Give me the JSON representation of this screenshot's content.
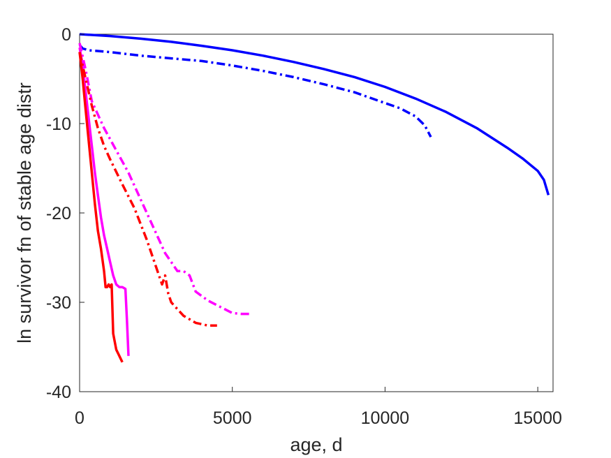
{
  "chart_data": {
    "type": "line",
    "title": "",
    "xlabel": "age, d",
    "ylabel": "ln survivor fn of stable age distr",
    "xlim": [
      0,
      15500
    ],
    "ylim": [
      -40,
      0
    ],
    "xticks": [
      0,
      5000,
      10000,
      15000
    ],
    "yticks": [
      0,
      -10,
      -20,
      -30,
      -40
    ],
    "grid": false,
    "legend": "none",
    "series": [
      {
        "color": "#0000ff",
        "dash": "solid",
        "x": [
          0,
          1000,
          2000,
          3000,
          4000,
          5000,
          6000,
          7000,
          8000,
          9000,
          10000,
          11000,
          12000,
          13000,
          14000,
          14500,
          15000,
          15200,
          15350
        ],
        "y": [
          0,
          -0.2,
          -0.5,
          -0.85,
          -1.3,
          -1.8,
          -2.4,
          -3.1,
          -3.9,
          -4.8,
          -5.9,
          -7.2,
          -8.7,
          -10.5,
          -12.7,
          -13.9,
          -15.3,
          -16.3,
          -18
        ]
      },
      {
        "color": "#0000ff",
        "dash": "dashdot",
        "x": [
          0,
          100,
          300,
          1000,
          2000,
          3000,
          4000,
          5000,
          6000,
          7000,
          8000,
          9000,
          10000,
          10500,
          11000,
          11300,
          11500
        ],
        "y": [
          -1.2,
          -1.6,
          -1.8,
          -2.0,
          -2.4,
          -2.7,
          -3.0,
          -3.5,
          -4.1,
          -4.8,
          -5.6,
          -6.5,
          -7.7,
          -8.3,
          -9.2,
          -10.2,
          -11.5
        ]
      },
      {
        "color": "#ff00ff",
        "dash": "solid",
        "x": [
          0,
          100,
          200,
          300,
          400,
          500,
          600,
          700,
          800,
          900,
          1000,
          1100,
          1200,
          1300,
          1400,
          1500,
          1550,
          1600
        ],
        "y": [
          -1.5,
          -3.5,
          -6.5,
          -9.5,
          -12.5,
          -15.5,
          -18,
          -20.5,
          -22.5,
          -24,
          -25.5,
          -27,
          -28,
          -28.3,
          -28.3,
          -28.5,
          -32,
          -36
        ]
      },
      {
        "color": "#ff0000",
        "dash": "solid",
        "x": [
          0,
          100,
          200,
          300,
          400,
          500,
          600,
          700,
          800,
          850,
          900,
          950,
          1000,
          1050,
          1100,
          1200,
          1300,
          1400
        ],
        "y": [
          -2,
          -5,
          -8.5,
          -12,
          -15.5,
          -19,
          -22,
          -24,
          -26.5,
          -28.3,
          -28.3,
          -28,
          -28.3,
          -28,
          -33.5,
          -35.3,
          -36,
          -36.7
        ]
      },
      {
        "color": "#ff00ff",
        "dash": "dashdot",
        "x": [
          0,
          200,
          400,
          800,
          1200,
          1600,
          2000,
          2400,
          2800,
          3200,
          3400,
          3600,
          3800,
          4200,
          4600,
          5000,
          5300,
          5600
        ],
        "y": [
          -1,
          -4,
          -7.5,
          -10.5,
          -13,
          -15.5,
          -18.5,
          -21.5,
          -24.5,
          -26.5,
          -26.5,
          -27,
          -28.8,
          -29.8,
          -30.5,
          -31.2,
          -31.3,
          -31.3
        ]
      },
      {
        "color": "#ff0000",
        "dash": "dashdot",
        "x": [
          0,
          200,
          400,
          600,
          800,
          1000,
          1400,
          1800,
          2200,
          2600,
          2700,
          2800,
          2900,
          3000,
          3400,
          3800,
          4200,
          4500
        ],
        "y": [
          -2,
          -5,
          -8,
          -10.5,
          -12.5,
          -14,
          -16.8,
          -19.5,
          -23,
          -27,
          -28,
          -27,
          -29,
          -30,
          -31.5,
          -32.3,
          -32.6,
          -32.6
        ]
      }
    ]
  }
}
